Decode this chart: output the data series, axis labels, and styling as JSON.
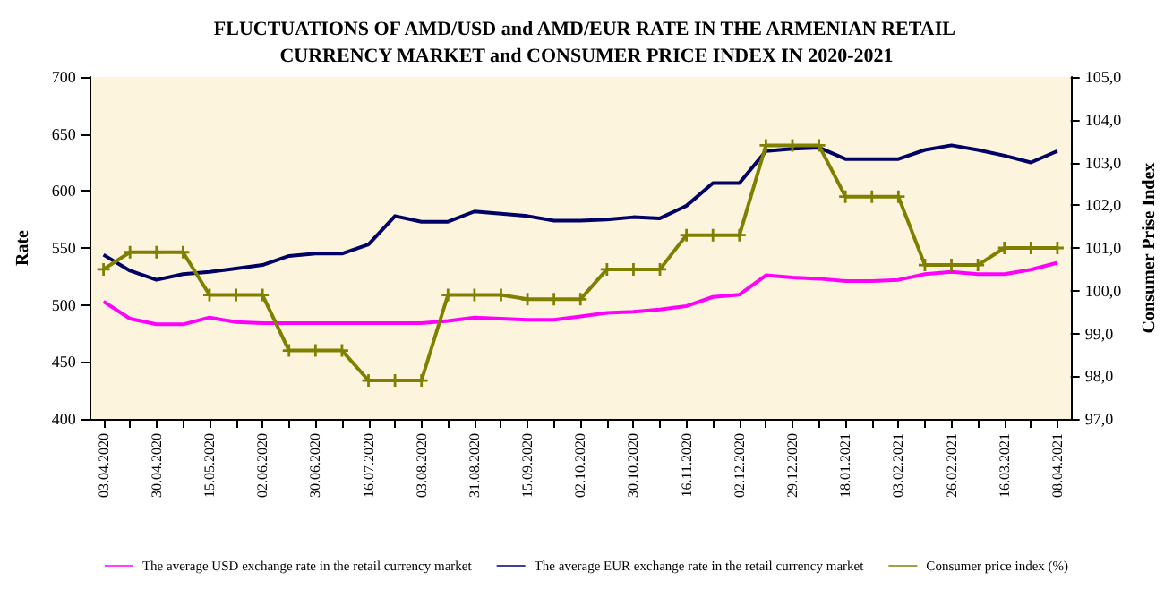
{
  "chart_data": {
    "type": "line",
    "title": "FLUCTUATIONS OF AMD/USD and AMD/EUR RATE IN THE ARMENIAN RETAIL CURRENCY MARKET and CONSUMER PRICE INDEX IN 2020-2021",
    "ylabel": "Rate",
    "y2label": "Consumer Prise Index",
    "categories": [
      "03.04.2020",
      null,
      "30.04.2020",
      null,
      "15.05.2020",
      null,
      "02.06.2020",
      null,
      "30.06.2020",
      null,
      "16.07.2020",
      null,
      "03.08.2020",
      null,
      "31.08.2020",
      null,
      "15.09.2020",
      null,
      "02.10.2020",
      null,
      "30.10.2020",
      null,
      "16.11.2020",
      null,
      "02.12.2020",
      null,
      "29.12.2020",
      null,
      "18.01.2021",
      null,
      "03.02.2021",
      null,
      "26.02.2021",
      null,
      "16.03.2021",
      null,
      "08.04.2021"
    ],
    "series": [
      {
        "name": "The average USD exchange rate in the retail currency market",
        "color": "#ff00ff",
        "marker": "none",
        "values": [
          503,
          488,
          483,
          483,
          489,
          485,
          484,
          484,
          484,
          484,
          484,
          484,
          484,
          486,
          489,
          488,
          487,
          487,
          490,
          493,
          494,
          496,
          499,
          507,
          509,
          526,
          524,
          523,
          521,
          521,
          522,
          527,
          529,
          527,
          527,
          531,
          537
        ]
      },
      {
        "name": "The average EUR exchange rate in the retail currency market",
        "color": "#000066",
        "marker": "none",
        "values": [
          544,
          530,
          522,
          527,
          529,
          532,
          535,
          543,
          545,
          545,
          553,
          578,
          573,
          573,
          582,
          580,
          578,
          574,
          574,
          575,
          577,
          576,
          587,
          607,
          607,
          635,
          637,
          638,
          628,
          628,
          628,
          636,
          640,
          636,
          631,
          625,
          635
        ]
      },
      {
        "name": "Consumer price index (%)",
        "color": "#808000",
        "marker": "cross",
        "axis": "y2",
        "values": [
          100.5,
          100.9,
          100.9,
          100.9,
          99.9,
          99.9,
          99.9,
          98.6,
          98.6,
          98.6,
          97.9,
          97.9,
          97.9,
          99.9,
          99.9,
          99.9,
          99.8,
          99.8,
          99.8,
          100.5,
          100.5,
          100.5,
          101.3,
          101.3,
          101.3,
          103.4,
          103.4,
          103.4,
          102.2,
          102.2,
          102.2,
          100.6,
          100.6,
          100.6,
          101.0,
          101.0,
          101.0
        ]
      }
    ],
    "ylim": [
      400,
      700
    ],
    "yticks": [
      400,
      450,
      500,
      550,
      600,
      650,
      700
    ],
    "y2lim": [
      97,
      105
    ],
    "y2ticks": [
      {
        "value": 97,
        "label": "97,0"
      },
      {
        "value": 98,
        "label": "98,0"
      },
      {
        "value": 99,
        "label": "99,0"
      },
      {
        "value": 100,
        "label": "100,0"
      },
      {
        "value": 101,
        "label": "101,0"
      },
      {
        "value": 102,
        "label": "102,0"
      },
      {
        "value": 103,
        "label": "103,0"
      },
      {
        "value": 104,
        "label": "104,0"
      },
      {
        "value": 105,
        "label": "105,0"
      }
    ],
    "grid": false,
    "legend": "bottom"
  }
}
